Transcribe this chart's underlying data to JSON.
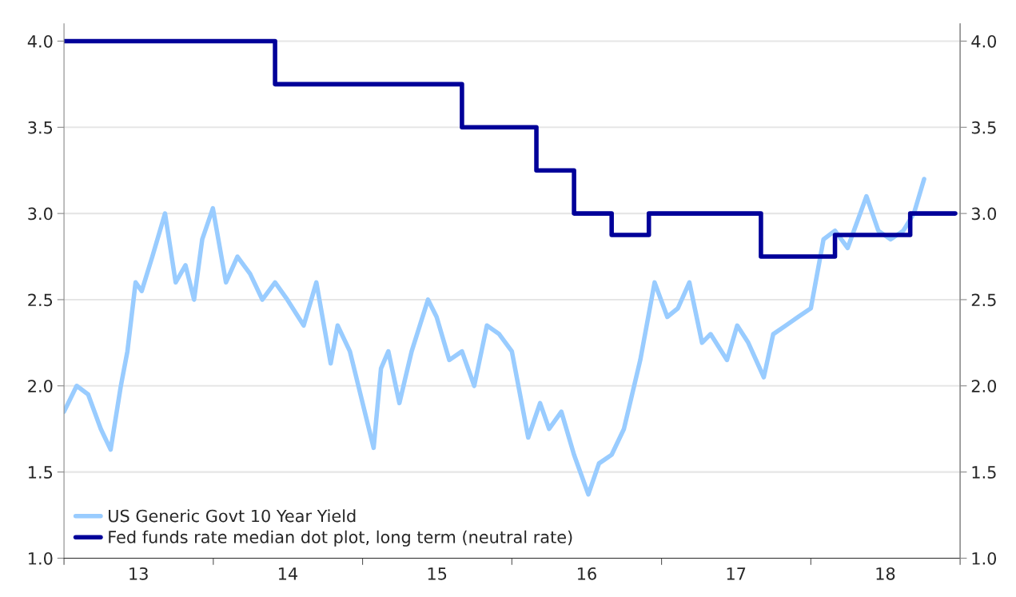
{
  "chart_data": {
    "type": "line",
    "xlim": [
      "2013-01-01",
      "2019-01-01"
    ],
    "xticks": [
      {
        "value": "2013-01-01",
        "label": null
      },
      {
        "value": "2013-07-02",
        "label": "13"
      },
      {
        "value": "2014-01-01",
        "label": null
      },
      {
        "value": "2014-07-02",
        "label": "14"
      },
      {
        "value": "2015-01-01",
        "label": null
      },
      {
        "value": "2015-07-02",
        "label": "15"
      },
      {
        "value": "2016-01-01",
        "label": null
      },
      {
        "value": "2016-07-02",
        "label": "16"
      },
      {
        "value": "2017-01-01",
        "label": null
      },
      {
        "value": "2017-07-02",
        "label": "17"
      },
      {
        "value": "2018-01-01",
        "label": null
      },
      {
        "value": "2018-07-02",
        "label": "18"
      },
      {
        "value": "2019-01-01",
        "label": null
      }
    ],
    "ylim": [
      1.0,
      4.1
    ],
    "yticks": [
      {
        "value": 1.0,
        "label": "1.0"
      },
      {
        "value": 1.5,
        "label": "1.5"
      },
      {
        "value": 2.0,
        "label": "2.0"
      },
      {
        "value": 2.5,
        "label": "2.5"
      },
      {
        "value": 3.0,
        "label": "3.0"
      },
      {
        "value": 3.5,
        "label": "3.5"
      },
      {
        "value": 4.0,
        "label": "4.0"
      }
    ],
    "y2lim": [
      1.0,
      4.1
    ],
    "y2ticks": [
      {
        "value": 1.0,
        "label": "1.0"
      },
      {
        "value": 1.5,
        "label": "1.5"
      },
      {
        "value": 2.0,
        "label": "2.0"
      },
      {
        "value": 2.5,
        "label": "2.5"
      },
      {
        "value": 3.0,
        "label": "3.0"
      },
      {
        "value": 3.5,
        "label": "3.5"
      },
      {
        "value": 4.0,
        "label": "4.0"
      }
    ],
    "grid": "y",
    "legend": "bottom left",
    "series": [
      {
        "name": "US Generic Govt 10 Year Yield",
        "color": "#99ccff",
        "x": [
          "2013-01-01",
          "2013-02-01",
          "2013-03-01",
          "2013-04-01",
          "2013-04-25",
          "2013-05-20",
          "2013-06-05",
          "2013-06-25",
          "2013-07-10",
          "2013-08-05",
          "2013-09-05",
          "2013-10-01",
          "2013-10-25",
          "2013-11-15",
          "2013-12-05",
          "2013-12-31",
          "2014-02-01",
          "2014-03-01",
          "2014-04-01",
          "2014-05-01",
          "2014-06-01",
          "2014-07-01",
          "2014-08-10",
          "2014-09-10",
          "2014-10-15",
          "2014-11-01",
          "2014-12-01",
          "2015-01-28",
          "2015-02-15",
          "2015-03-05",
          "2015-04-01",
          "2015-05-01",
          "2015-06-10",
          "2015-07-01",
          "2015-08-01",
          "2015-09-01",
          "2015-10-01",
          "2015-11-01",
          "2015-12-01",
          "2016-01-01",
          "2016-02-10",
          "2016-03-10",
          "2016-04-01",
          "2016-05-01",
          "2016-06-01",
          "2016-07-06",
          "2016-08-01",
          "2016-09-01",
          "2016-10-01",
          "2016-11-10",
          "2016-12-15",
          "2017-01-15",
          "2017-02-10",
          "2017-03-10",
          "2017-04-10",
          "2017-05-01",
          "2017-06-10",
          "2017-07-05",
          "2017-08-01",
          "2017-09-08",
          "2017-10-01",
          "2017-11-01",
          "2017-12-01",
          "2018-01-01",
          "2018-02-01",
          "2018-03-01",
          "2018-04-01",
          "2018-05-17",
          "2018-06-15",
          "2018-07-15",
          "2018-08-15",
          "2018-09-10",
          "2018-10-05"
        ],
        "values": [
          1.85,
          2.0,
          1.95,
          1.75,
          1.63,
          2.0,
          2.2,
          2.6,
          2.55,
          2.75,
          3.0,
          2.6,
          2.7,
          2.5,
          2.85,
          3.03,
          2.6,
          2.75,
          2.65,
          2.5,
          2.6,
          2.5,
          2.35,
          2.6,
          2.13,
          2.35,
          2.2,
          1.64,
          2.1,
          2.2,
          1.9,
          2.2,
          2.5,
          2.4,
          2.15,
          2.2,
          2.0,
          2.35,
          2.3,
          2.2,
          1.7,
          1.9,
          1.75,
          1.85,
          1.6,
          1.37,
          1.55,
          1.6,
          1.75,
          2.15,
          2.6,
          2.4,
          2.45,
          2.6,
          2.25,
          2.3,
          2.15,
          2.35,
          2.25,
          2.05,
          2.3,
          2.35,
          2.4,
          2.45,
          2.85,
          2.9,
          2.8,
          3.1,
          2.9,
          2.85,
          2.9,
          3.0,
          3.2
        ]
      },
      {
        "name": "Fed funds rate median dot plot, long term (neutral rate)",
        "type": "step",
        "color": "#000099",
        "x": [
          "2013-01-01",
          "2014-06-01",
          "2015-09-01",
          "2016-03-01",
          "2016-06-01",
          "2016-09-01",
          "2016-12-01",
          "2017-09-01",
          "2018-03-01",
          "2018-09-01",
          "2018-12-20"
        ],
        "values": [
          4.0,
          3.75,
          3.5,
          3.25,
          3.0,
          2.875,
          3.0,
          2.75,
          2.875,
          3.0,
          3.0
        ]
      }
    ]
  }
}
